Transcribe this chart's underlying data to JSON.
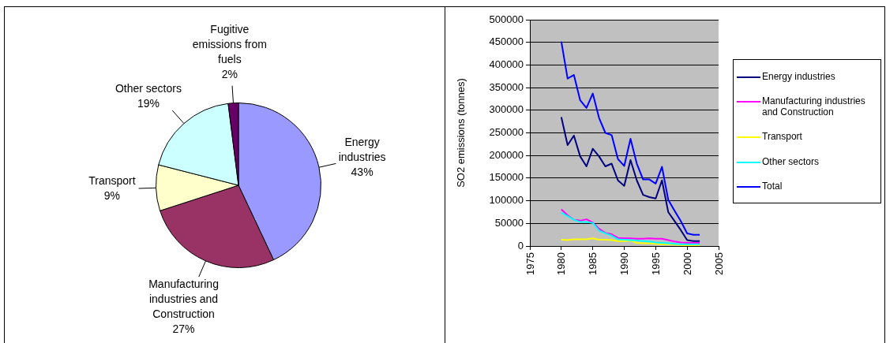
{
  "chart_data": [
    {
      "type": "pie",
      "categories": [
        "Energy industries",
        "Manufacturing industries and Construction",
        "Transport",
        "Other sectors",
        "Fugitive emissions from fuels"
      ],
      "values": [
        43,
        27,
        9,
        19,
        2
      ],
      "colors": [
        "#9999ff",
        "#993366",
        "#ffffcc",
        "#ccffff",
        "#660066"
      ],
      "value_labels": [
        "43%",
        "27%",
        "9%",
        "19%",
        "2%"
      ]
    },
    {
      "type": "line",
      "ylabel": "SO2 emissions (tonnes)",
      "xlim": [
        1975,
        2005
      ],
      "xticks": [
        1975,
        1980,
        1985,
        1990,
        1995,
        2000,
        2005
      ],
      "ylim": [
        0,
        500000
      ],
      "yticks": [
        0,
        50000,
        100000,
        150000,
        200000,
        250000,
        300000,
        350000,
        400000,
        450000,
        500000
      ],
      "grid": "y",
      "legend": "right",
      "x": [
        1980,
        1981,
        1982,
        1983,
        1984,
        1985,
        1986,
        1987,
        1988,
        1989,
        1990,
        1991,
        1992,
        1993,
        1994,
        1995,
        1996,
        1997,
        1998,
        1999,
        2000,
        2001,
        2002
      ],
      "series": [
        {
          "name": "Energy industries",
          "color": "#000080",
          "values": [
            285000,
            223000,
            244000,
            198000,
            176000,
            215000,
            198000,
            176000,
            182000,
            145000,
            133000,
            190000,
            145000,
            113000,
            108000,
            105000,
            145000,
            75000,
            55000,
            35000,
            13000,
            11000,
            11000
          ]
        },
        {
          "name": "Manufacturing  industries and Construction",
          "color": "#ff00ff",
          "values": [
            81000,
            68000,
            58000,
            56000,
            59000,
            52000,
            38000,
            29000,
            26000,
            18000,
            17000,
            17000,
            16000,
            16000,
            17000,
            16000,
            16000,
            13000,
            10000,
            8000,
            7000,
            7000,
            7000
          ]
        },
        {
          "name": "Transport",
          "color": "#ffff00",
          "values": [
            14000,
            13000,
            15000,
            15000,
            15000,
            17000,
            14000,
            14000,
            13000,
            11000,
            11000,
            12000,
            7000,
            6000,
            6000,
            5000,
            4000,
            4000,
            3000,
            2000,
            1000,
            1000,
            2000
          ]
        },
        {
          "name": "Other sectors",
          "color": "#00ffff",
          "values": [
            74000,
            66000,
            58000,
            53000,
            53000,
            51000,
            34000,
            28000,
            23000,
            15000,
            14000,
            13000,
            12000,
            11000,
            10000,
            8000,
            7000,
            6000,
            5000,
            4000,
            4000,
            4000,
            4000
          ]
        },
        {
          "name": "Total",
          "color": "#0000ff",
          "values": [
            452000,
            370000,
            378000,
            322000,
            305000,
            337000,
            283000,
            250000,
            245000,
            192000,
            177000,
            237000,
            182000,
            147000,
            147000,
            138000,
            175000,
            102000,
            78000,
            55000,
            28000,
            25000,
            25000
          ]
        }
      ]
    }
  ]
}
